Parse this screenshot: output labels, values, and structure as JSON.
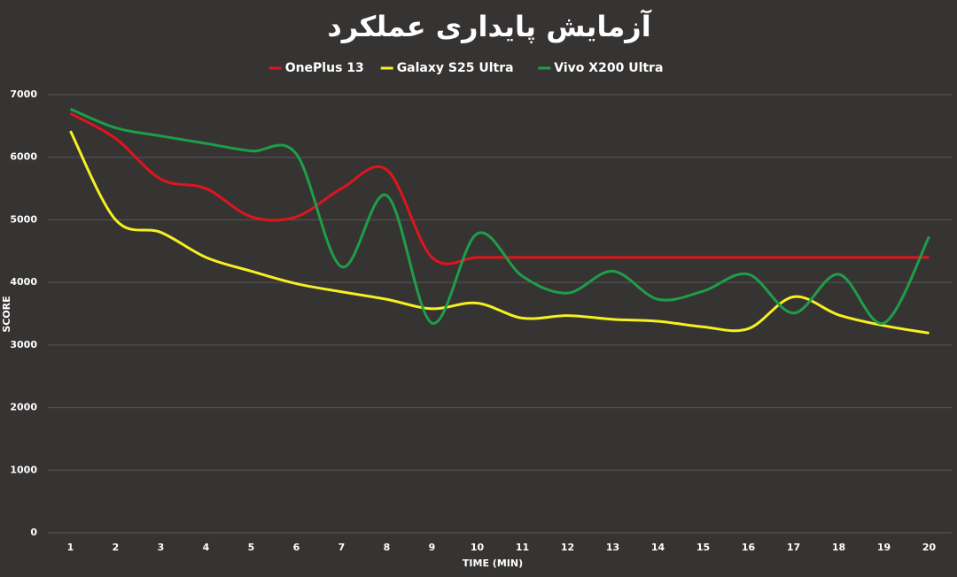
{
  "chart_data": {
    "type": "line",
    "title": "آزمایش پایداری عملکرد",
    "x_label": "TIME (MIN)",
    "y_label": "SCORE",
    "categories": [
      "1",
      "2",
      "3",
      "4",
      "5",
      "6",
      "7",
      "8",
      "9",
      "10",
      "11",
      "12",
      "13",
      "14",
      "15",
      "16",
      "17",
      "18",
      "19",
      "20"
    ],
    "series": [
      {
        "name": "OnePlus 13",
        "color": "#e0141c",
        "values": [
          6700,
          6300,
          5650,
          5500,
          5050,
          5050,
          5500,
          5800,
          4400,
          4400,
          4400,
          4400,
          4400,
          4400,
          4400,
          4400,
          4400,
          4400,
          4400,
          4400
        ]
      },
      {
        "name": "Galaxy S25 Ultra",
        "color": "#f5f020",
        "values": [
          6420,
          5000,
          4800,
          4400,
          4180,
          3980,
          3850,
          3730,
          3580,
          3670,
          3430,
          3470,
          3410,
          3380,
          3290,
          3260,
          3770,
          3480,
          3310,
          3190
        ]
      },
      {
        "name": "Vivo X200 Ultra",
        "color": "#1e9e48",
        "values": [
          6770,
          6470,
          6340,
          6220,
          6100,
          6050,
          4250,
          5390,
          3350,
          4780,
          4100,
          3830,
          4180,
          3730,
          3860,
          4130,
          3510,
          4130,
          3350,
          4730
        ]
      }
    ],
    "ylim": [
      0,
      7000
    ],
    "yticks": [
      0,
      1000,
      2000,
      3000,
      4000,
      5000,
      6000,
      7000
    ],
    "grid": true,
    "legend": "top"
  }
}
